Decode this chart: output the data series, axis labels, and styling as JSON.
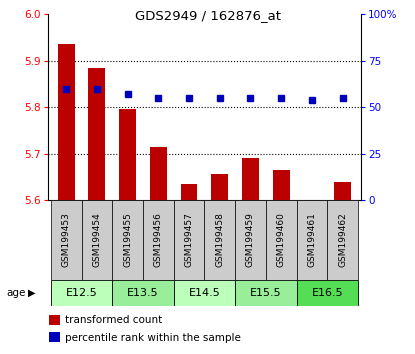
{
  "title": "GDS2949 / 162876_at",
  "samples": [
    "GSM199453",
    "GSM199454",
    "GSM199455",
    "GSM199456",
    "GSM199457",
    "GSM199458",
    "GSM199459",
    "GSM199460",
    "GSM199461",
    "GSM199462"
  ],
  "red_values": [
    5.935,
    5.885,
    5.795,
    5.715,
    5.635,
    5.655,
    5.69,
    5.665,
    5.601,
    5.638
  ],
  "blue_values": [
    60,
    60,
    57,
    55,
    55,
    55,
    55,
    55,
    54,
    55
  ],
  "ylim": [
    5.6,
    6.0
  ],
  "y2lim": [
    0,
    100
  ],
  "yticks": [
    5.6,
    5.7,
    5.8,
    5.9,
    6.0
  ],
  "y2ticks": [
    0,
    25,
    50,
    75,
    100
  ],
  "age_groups": [
    {
      "label": "E12.5",
      "cols": [
        0,
        1
      ],
      "color": "#bbffbb"
    },
    {
      "label": "E13.5",
      "cols": [
        2,
        3
      ],
      "color": "#99ee99"
    },
    {
      "label": "E14.5",
      "cols": [
        4,
        5
      ],
      "color": "#bbffbb"
    },
    {
      "label": "E15.5",
      "cols": [
        6,
        7
      ],
      "color": "#99ee99"
    },
    {
      "label": "E16.5",
      "cols": [
        8,
        9
      ],
      "color": "#55dd55"
    }
  ],
  "bar_color": "#bb0000",
  "dot_color": "#0000bb",
  "bar_width": 0.55,
  "sample_bg": "#cccccc",
  "age_label": "age",
  "legend_items": [
    {
      "label": "transformed count",
      "color": "#bb0000"
    },
    {
      "label": "percentile rank within the sample",
      "color": "#0000bb"
    }
  ]
}
